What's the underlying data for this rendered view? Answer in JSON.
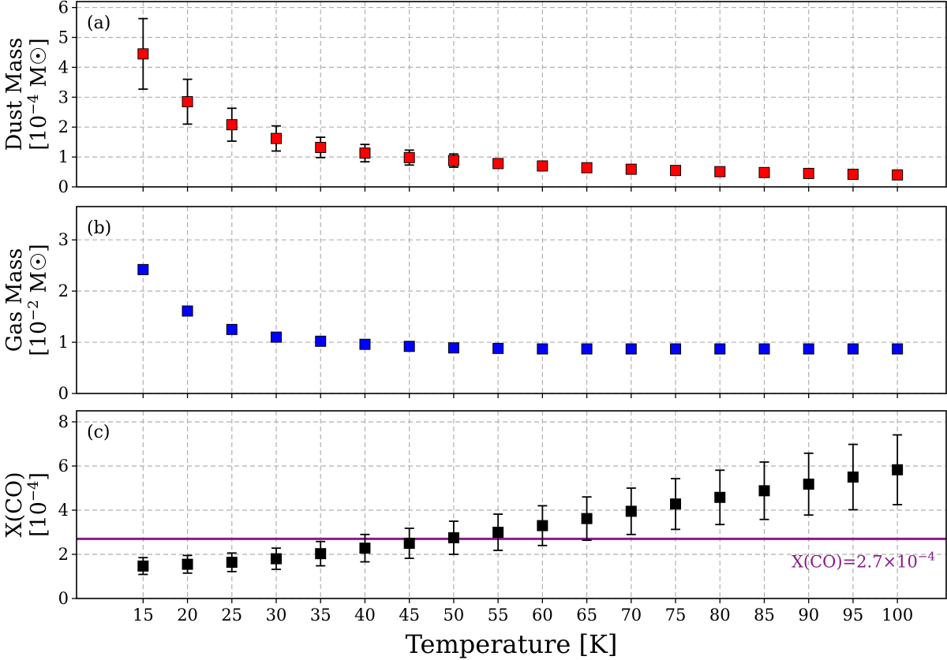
{
  "chart_data": [
    {
      "type": "scatter",
      "panel": "(a)",
      "ylabel_line1": "Dust Mass",
      "ylabel_line2": "[10",
      "ylabel_sup": "−4",
      "ylabel_unit": " M☉]",
      "ylim": [
        0,
        6.2
      ],
      "yticks": [
        0,
        1,
        2,
        3,
        4,
        5,
        6
      ],
      "grid": true,
      "marker_color": "#ff0000",
      "x": [
        15,
        20,
        25,
        30,
        35,
        40,
        45,
        50,
        55,
        60,
        65,
        70,
        75,
        80,
        85,
        90,
        95,
        100
      ],
      "y": [
        4.45,
        2.85,
        2.08,
        1.62,
        1.32,
        1.13,
        0.98,
        0.88,
        0.78,
        0.7,
        0.64,
        0.59,
        0.55,
        0.51,
        0.48,
        0.45,
        0.42,
        0.4
      ],
      "yerr": [
        1.18,
        0.75,
        0.55,
        0.42,
        0.34,
        0.29,
        0.25,
        0.22,
        0.15,
        0.1,
        0.07,
        0.05,
        0.04,
        0.03,
        0.03,
        0.02,
        0.02,
        0.02
      ]
    },
    {
      "type": "scatter",
      "panel": "(b)",
      "ylabel_line1": "Gas Mass",
      "ylabel_line2": "[10",
      "ylabel_sup": "−2",
      "ylabel_unit": " M☉]",
      "ylim": [
        0,
        3.65
      ],
      "yticks": [
        0,
        1,
        2,
        3
      ],
      "grid": true,
      "marker_color": "#0000ff",
      "x": [
        15,
        20,
        25,
        30,
        35,
        40,
        45,
        50,
        55,
        60,
        65,
        70,
        75,
        80,
        85,
        90,
        95,
        100
      ],
      "y": [
        2.42,
        1.61,
        1.25,
        1.1,
        1.02,
        0.96,
        0.92,
        0.89,
        0.88,
        0.87,
        0.87,
        0.87,
        0.87,
        0.87,
        0.87,
        0.87,
        0.87,
        0.87
      ],
      "yerr": [
        0,
        0,
        0,
        0,
        0,
        0,
        0,
        0,
        0,
        0,
        0,
        0,
        0,
        0,
        0,
        0,
        0,
        0
      ]
    },
    {
      "type": "scatter",
      "panel": "(c)",
      "ylabel_line1": "X(CO)",
      "ylabel_line2": "[10",
      "ylabel_sup": "−4",
      "ylabel_unit": "]",
      "ylim": [
        0,
        8.5
      ],
      "yticks": [
        0,
        2,
        4,
        6,
        8
      ],
      "grid": true,
      "marker_color": "#000000",
      "x": [
        15,
        20,
        25,
        30,
        35,
        40,
        45,
        50,
        55,
        60,
        65,
        70,
        75,
        80,
        85,
        90,
        95,
        100
      ],
      "y": [
        1.47,
        1.55,
        1.64,
        1.8,
        2.03,
        2.28,
        2.5,
        2.75,
        3.0,
        3.3,
        3.62,
        3.95,
        4.28,
        4.58,
        4.88,
        5.18,
        5.5,
        5.83
      ],
      "yerr": [
        0.38,
        0.4,
        0.42,
        0.48,
        0.55,
        0.62,
        0.68,
        0.75,
        0.82,
        0.9,
        0.98,
        1.05,
        1.15,
        1.23,
        1.3,
        1.4,
        1.48,
        1.58
      ],
      "reference_line": {
        "y": 2.7,
        "color": "#8b1a89",
        "label": "X(CO)=2.7×10",
        "label_sup": "−4"
      }
    }
  ],
  "xaxis": {
    "label": "Temperature [K]",
    "ticks": [
      15,
      20,
      25,
      30,
      35,
      40,
      45,
      50,
      55,
      60,
      65,
      70,
      75,
      80,
      85,
      90,
      95,
      100
    ],
    "xlim": [
      7.5,
      105.5
    ]
  }
}
